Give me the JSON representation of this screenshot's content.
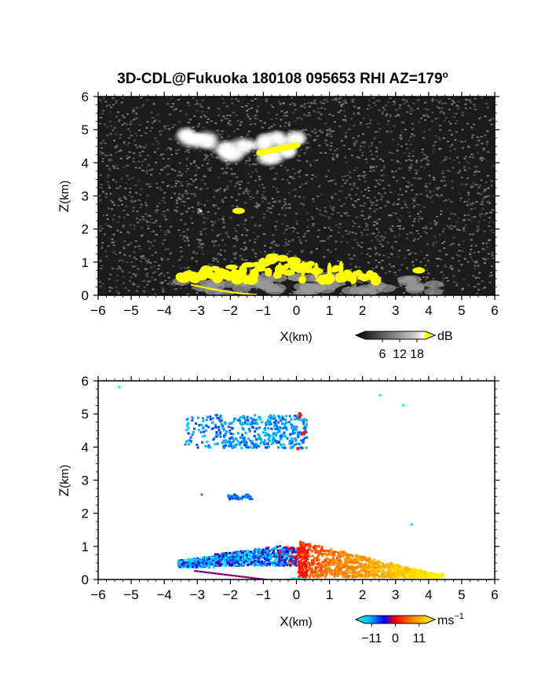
{
  "title": {
    "main": "3D-CDL@Fukuoka 180108 095653 RHI AZ=179",
    "sup": "o"
  },
  "chart_data": [
    {
      "type": "heatmap",
      "panel": "top",
      "xlabel_main": "X",
      "xlabel_unit": "(km)",
      "ylabel_main": "Z",
      "ylabel_unit": "(km)",
      "xlim": [
        -6,
        6
      ],
      "ylim": [
        0,
        6
      ],
      "xticks": [
        "-6",
        "-5",
        "-4",
        "-3",
        "-2",
        "-1",
        "0",
        "1",
        "2",
        "3",
        "4",
        "5",
        "6"
      ],
      "yticks": [
        "0",
        "1",
        "2",
        "3",
        "4",
        "5",
        "6"
      ],
      "colorbar": {
        "unit": "dB",
        "ticks": [
          "6",
          "12",
          "18"
        ],
        "range": [
          0,
          21
        ]
      },
      "features": [
        {
          "id": "upper-cloud",
          "x_range": [
            -3.4,
            0.2
          ],
          "z_range": [
            4.0,
            5.1
          ],
          "value_db": 12
        },
        {
          "id": "upper-cloud-core",
          "x_range": [
            -1.1,
            0.1
          ],
          "z_range": [
            4.2,
            4.6
          ],
          "value_db": 19
        },
        {
          "id": "mid-patch",
          "x_range": [
            -2.0,
            -1.5
          ],
          "z_range": [
            2.4,
            2.6
          ],
          "value_db": 19
        },
        {
          "id": "boundary-layer",
          "x_range": [
            -3.6,
            4.4
          ],
          "z_range": [
            0.0,
            1.1
          ],
          "value_db": 19
        }
      ]
    },
    {
      "type": "heatmap",
      "panel": "bottom",
      "xlabel_main": "X",
      "xlabel_unit": "(km)",
      "ylabel_main": "Z",
      "ylabel_unit": "(km)",
      "xlim": [
        -6,
        6
      ],
      "ylim": [
        0,
        6
      ],
      "xticks": [
        "-6",
        "-5",
        "-4",
        "-3",
        "-2",
        "-1",
        "0",
        "1",
        "2",
        "3",
        "4",
        "5",
        "6"
      ],
      "yticks": [
        "0",
        "1",
        "2",
        "3",
        "4",
        "5",
        "6"
      ],
      "colorbar": {
        "unit": "ms",
        "unit_sup": "−1",
        "ticks": [
          "−11",
          "0",
          "11"
        ],
        "range": [
          -14,
          14
        ]
      },
      "features": [
        {
          "id": "upper-cloud",
          "x_range": [
            -3.4,
            0.3
          ],
          "z_range": [
            3.7,
            5.1
          ],
          "value_ms": -8
        },
        {
          "id": "mid-patch",
          "x_range": [
            -2.1,
            -1.3
          ],
          "z_range": [
            2.4,
            2.7
          ],
          "value_ms": -7
        },
        {
          "id": "boundary-layer-west",
          "x_range": [
            -3.6,
            0.0
          ],
          "z_range": [
            0.0,
            0.8
          ],
          "value_ms": -6
        },
        {
          "id": "boundary-layer-east",
          "x_range": [
            0.0,
            4.4
          ],
          "z_range": [
            0.0,
            1.1
          ],
          "value_ms": 7
        }
      ]
    }
  ]
}
